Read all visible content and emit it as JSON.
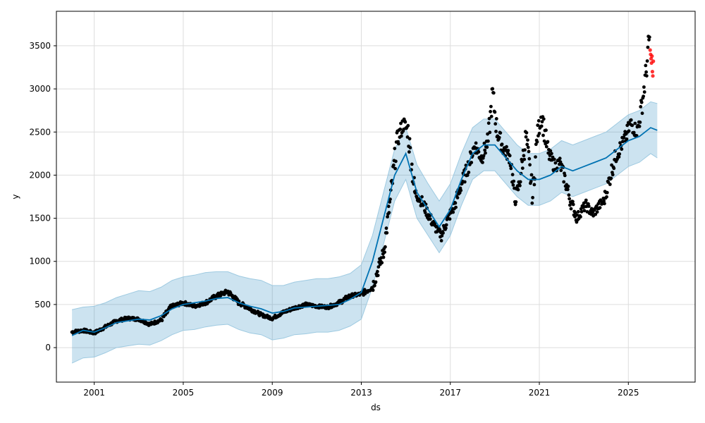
{
  "chart_data": {
    "type": "line",
    "xlabel": "ds",
    "ylabel": "y",
    "xlim": [
      1999.3,
      2028.0
    ],
    "ylim": [
      -400,
      3900
    ],
    "x_ticks": [
      2001,
      2005,
      2009,
      2013,
      2017,
      2021,
      2025
    ],
    "x_tick_labels": [
      "2001",
      "2005",
      "2009",
      "2013",
      "2017",
      "2021",
      "2025"
    ],
    "y_ticks": [
      0,
      500,
      1000,
      1500,
      2000,
      2500,
      3000,
      3500
    ],
    "y_tick_labels": [
      "0",
      "500",
      "1000",
      "1500",
      "2000",
      "2500",
      "3000",
      "3500"
    ],
    "grid": true,
    "colors": {
      "observed": "#000000",
      "forecast": "#0072b2",
      "interval_fill": "#0072b2",
      "interval_edge": "#9ecae1",
      "holdout": "#ff0000"
    },
    "series": [
      {
        "kind": "observed",
        "x": [
          2000.0,
          2000.5,
          2001.0,
          2001.5,
          2002.0,
          2002.5,
          2003.0,
          2003.5,
          2004.0,
          2004.5,
          2005.0,
          2005.5,
          2006.0,
          2006.5,
          2007.0,
          2007.5,
          2008.0,
          2008.5,
          2009.0,
          2009.5,
          2010.0,
          2010.5,
          2011.0,
          2011.5,
          2012.0,
          2012.5,
          2013.0,
          2013.5,
          2014.0,
          2014.3,
          2014.6,
          2014.9,
          2015.1,
          2015.4,
          2015.7,
          2016.0,
          2016.3,
          2016.6,
          2016.9,
          2017.2,
          2017.5,
          2017.8,
          2018.1,
          2018.4,
          2018.7,
          2018.9,
          2019.1,
          2019.4,
          2019.7,
          2019.9,
          2020.1,
          2020.4,
          2020.7,
          2020.9,
          2021.1,
          2021.4,
          2021.7,
          2021.9,
          2022.1,
          2022.4,
          2022.7,
          2022.9,
          2023.1,
          2023.4,
          2023.7,
          2023.9,
          2024.1,
          2024.4,
          2024.7,
          2024.9,
          2025.1,
          2025.4,
          2025.6,
          2025.8,
          2025.95
        ],
        "y": [
          180,
          200,
          170,
          240,
          310,
          340,
          330,
          270,
          320,
          480,
          520,
          480,
          520,
          600,
          650,
          520,
          450,
          380,
          340,
          410,
          460,
          500,
          480,
          470,
          520,
          600,
          620,
          700,
          1100,
          1700,
          2400,
          2600,
          2500,
          1800,
          1700,
          1550,
          1400,
          1300,
          1500,
          1650,
          1900,
          2100,
          2350,
          2200,
          2400,
          2950,
          2500,
          2300,
          2200,
          1700,
          1900,
          2450,
          1750,
          2450,
          2700,
          2250,
          2100,
          2150,
          2000,
          1700,
          1500,
          1600,
          1650,
          1550,
          1650,
          1700,
          1900,
          2200,
          2350,
          2450,
          2600,
          2500,
          2800,
          3200,
          3600
        ]
      },
      {
        "kind": "holdout",
        "x": [
          2025.98,
          2026.0,
          2026.02,
          2026.04,
          2026.06,
          2026.08,
          2026.1,
          2026.12
        ],
        "y": [
          3450,
          3400,
          3350,
          3300,
          3380,
          3200,
          3150,
          3320
        ]
      },
      {
        "kind": "forecast",
        "x": [
          2000.0,
          2000.5,
          2001.0,
          2001.5,
          2002.0,
          2002.5,
          2003.0,
          2003.5,
          2004.0,
          2004.5,
          2005.0,
          2005.5,
          2006.0,
          2006.5,
          2007.0,
          2007.5,
          2008.0,
          2008.5,
          2009.0,
          2009.5,
          2010.0,
          2010.5,
          2011.0,
          2011.5,
          2012.0,
          2012.5,
          2013.0,
          2013.5,
          2014.0,
          2014.5,
          2015.0,
          2015.5,
          2016.0,
          2016.5,
          2017.0,
          2017.5,
          2018.0,
          2018.5,
          2019.0,
          2019.5,
          2020.0,
          2020.5,
          2021.0,
          2021.5,
          2022.0,
          2022.5,
          2023.0,
          2023.5,
          2024.0,
          2024.5,
          2025.0,
          2025.5,
          2026.0,
          2026.3
        ],
        "y": [
          140,
          200,
          180,
          230,
          290,
          310,
          330,
          320,
          370,
          450,
          500,
          520,
          540,
          570,
          580,
          520,
          480,
          450,
          400,
          420,
          460,
          470,
          480,
          490,
          500,
          560,
          640,
          1000,
          1500,
          2000,
          2250,
          1800,
          1600,
          1400,
          1600,
          1950,
          2250,
          2350,
          2350,
          2200,
          2050,
          1950,
          1950,
          2000,
          2100,
          2050,
          2100,
          2150,
          2200,
          2300,
          2400,
          2450,
          2550,
          2520
        ]
      },
      {
        "kind": "interval",
        "x": [
          2000.0,
          2000.5,
          2001.0,
          2001.5,
          2002.0,
          2002.5,
          2003.0,
          2003.5,
          2004.0,
          2004.5,
          2005.0,
          2005.5,
          2006.0,
          2006.5,
          2007.0,
          2007.5,
          2008.0,
          2008.5,
          2009.0,
          2009.5,
          2010.0,
          2010.5,
          2011.0,
          2011.5,
          2012.0,
          2012.5,
          2013.0,
          2013.5,
          2014.0,
          2014.5,
          2015.0,
          2015.5,
          2016.0,
          2016.5,
          2017.0,
          2017.5,
          2018.0,
          2018.5,
          2019.0,
          2019.5,
          2020.0,
          2020.5,
          2021.0,
          2021.5,
          2022.0,
          2022.5,
          2023.0,
          2023.5,
          2024.0,
          2024.5,
          2025.0,
          2025.5,
          2026.0,
          2026.3
        ],
        "upper": [
          440,
          470,
          480,
          520,
          580,
          620,
          660,
          650,
          700,
          780,
          820,
          840,
          870,
          880,
          880,
          830,
          800,
          780,
          720,
          720,
          760,
          780,
          800,
          800,
          820,
          860,
          960,
          1300,
          1800,
          2300,
          2550,
          2120,
          1900,
          1700,
          1900,
          2250,
          2550,
          2650,
          2650,
          2500,
          2350,
          2250,
          2250,
          2300,
          2400,
          2350,
          2400,
          2450,
          2500,
          2600,
          2700,
          2750,
          2850,
          2830
        ],
        "lower": [
          -180,
          -120,
          -110,
          -60,
          0,
          20,
          40,
          30,
          80,
          150,
          200,
          210,
          240,
          260,
          270,
          210,
          170,
          150,
          90,
          110,
          150,
          160,
          180,
          180,
          200,
          250,
          330,
          700,
          1200,
          1700,
          1950,
          1500,
          1300,
          1100,
          1300,
          1650,
          1950,
          2050,
          2050,
          1900,
          1750,
          1650,
          1650,
          1700,
          1800,
          1750,
          1800,
          1850,
          1900,
          2000,
          2100,
          2150,
          2250,
          2200
        ]
      }
    ]
  }
}
